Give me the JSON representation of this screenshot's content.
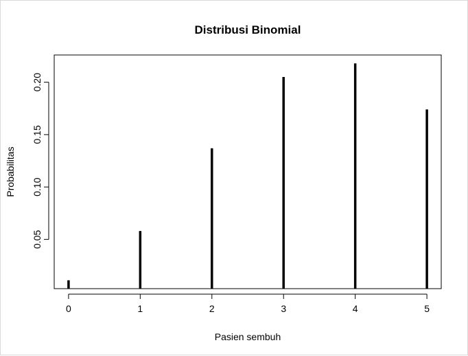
{
  "chart_data": {
    "type": "bar",
    "style": "histogram-spikes",
    "title": "Distribusi Binomial",
    "xlabel": "Pasien sembuh",
    "ylabel": "Probabilitas",
    "x": [
      0,
      1,
      2,
      3,
      4,
      5
    ],
    "x_tick_labels": [
      "0",
      "1",
      "2",
      "3",
      "4",
      "5"
    ],
    "values": [
      0.011,
      0.058,
      0.137,
      0.205,
      0.218,
      0.174
    ],
    "y_ticks": [
      0.05,
      0.1,
      0.15,
      0.2
    ],
    "y_tick_labels": [
      "0.05",
      "0.10",
      "0.15",
      "0.20"
    ],
    "xlim": [
      -0.2,
      5.2
    ],
    "ylim": [
      0.003,
      0.226
    ],
    "grid": false,
    "legend": "none",
    "line_color": "#000000"
  }
}
